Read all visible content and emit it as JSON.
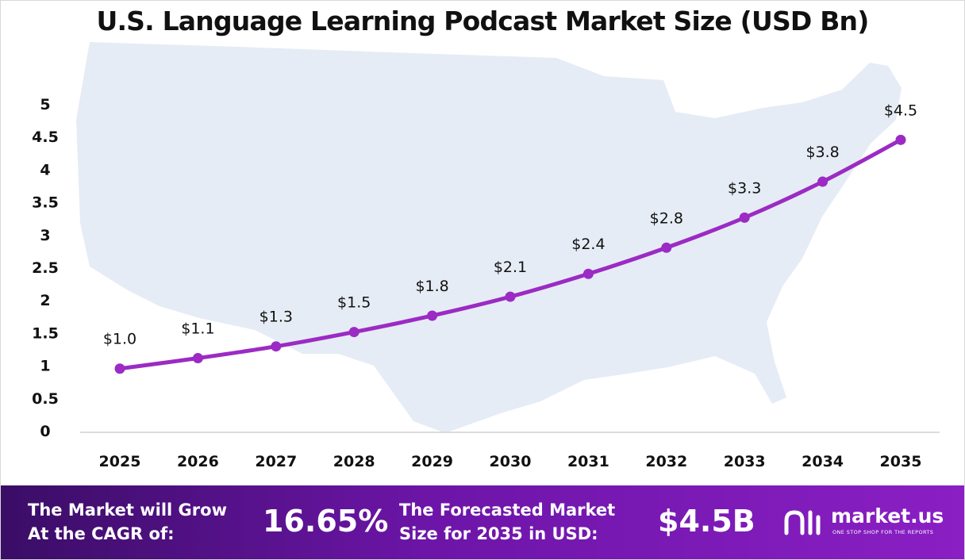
{
  "chart_data": {
    "type": "line",
    "title": "U.S. Language Learning Podcast Market Size (USD Bn)",
    "categories": [
      "2025",
      "2026",
      "2027",
      "2028",
      "2029",
      "2030",
      "2031",
      "2032",
      "2033",
      "2034",
      "2035"
    ],
    "values": [
      0.95,
      1.11,
      1.29,
      1.51,
      1.76,
      2.05,
      2.4,
      2.8,
      3.26,
      3.81,
      4.45
    ],
    "data_labels": [
      "$1.0",
      "$1.1",
      "$1.3",
      "$1.5",
      "$1.8",
      "$2.1",
      "$2.4",
      "$2.8",
      "$3.3",
      "$3.8",
      "$4.5"
    ],
    "yticks": [
      "0",
      "0.5",
      "1",
      "1.5",
      "2",
      "2.5",
      "3",
      "3.5",
      "4",
      "4.5",
      "5"
    ],
    "ylim": [
      0,
      5
    ],
    "grid": false,
    "legend": "none",
    "line_color": "#9b2bc4",
    "background_map_color": "#e6ecf5"
  },
  "footer": {
    "cagr_text": "The Market will Grow\nAt the CAGR of:",
    "cagr_value": "16.65%",
    "forecast_text": "The Forecasted Market\nSize for 2035 in USD:",
    "forecast_value": "$4.5B",
    "logo_name": "market.us",
    "logo_tagline": "ONE STOP SHOP FOR THE REPORTS",
    "logo_icon": "market-us-logo-icon",
    "gradient_colors": [
      "#3a0d66",
      "#8a1fc4"
    ]
  }
}
